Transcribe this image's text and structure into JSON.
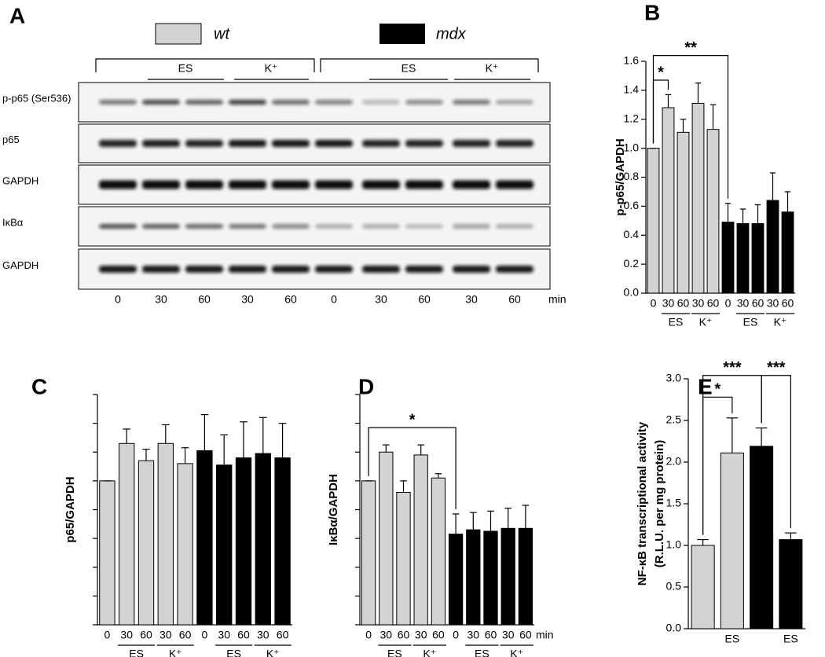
{
  "blot": {
    "panel": "A",
    "rows": [
      "p-p65 (Ser536)",
      "p65",
      "GAPDH",
      "IκBα",
      "GAPDH"
    ],
    "groups": [
      "ES",
      "K⁺",
      "ES",
      "K⁺"
    ],
    "lanes": [
      "0",
      "30",
      "60",
      "30",
      "60",
      "0",
      "30",
      "60",
      "30",
      "60"
    ],
    "unit": "min"
  },
  "chart_data": [
    {
      "type": "bar",
      "panel": "B",
      "ylabel": "p-p65/GAPDH",
      "categories": [
        "0",
        "30",
        "60",
        "30",
        "60",
        "0",
        "30",
        "60",
        "30",
        "60"
      ],
      "series": [
        {
          "name": "wt",
          "color": "#d3d3d3",
          "values": [
            1.0,
            1.28,
            1.11,
            1.31,
            1.13,
            null,
            null,
            null,
            null,
            null
          ],
          "errors": [
            0,
            0.09,
            0.09,
            0.14,
            0.17,
            null,
            null,
            null,
            null,
            null
          ]
        },
        {
          "name": "mdx",
          "color": "#000000",
          "values": [
            null,
            null,
            null,
            null,
            null,
            0.49,
            0.48,
            0.48,
            0.64,
            0.56
          ],
          "errors": [
            null,
            null,
            null,
            null,
            null,
            0.13,
            0.1,
            0.13,
            0.19,
            0.14
          ]
        }
      ],
      "ylim": [
        0,
        1.6
      ],
      "yticks": [
        {
          "value": 0,
          "label": "0.0"
        },
        0.2,
        0.4,
        0.6,
        0.8,
        {
          "value": 1,
          "label": "1.0"
        },
        1.2,
        1.4,
        1.6
      ],
      "groups": [
        "ES",
        "K⁺",
        "ES",
        "K⁺"
      ],
      "annotations": [
        {
          "text": "*"
        },
        {
          "text": "**"
        }
      ]
    },
    {
      "type": "bar",
      "panel": "C",
      "ylabel": "p65/GAPDH",
      "categories": [
        "0",
        "30",
        "60",
        "30",
        "60",
        "0",
        "30",
        "60",
        "30",
        "60"
      ],
      "series": [
        {
          "color": "#d3d3d3",
          "values": [
            1.0,
            1.26,
            1.14,
            1.26,
            1.12,
            null,
            null,
            null,
            null,
            null
          ],
          "errors": [
            0,
            0.1,
            0.08,
            0.13,
            0.11,
            null,
            null,
            null,
            null,
            null
          ]
        },
        {
          "color": "#000000",
          "values": [
            null,
            null,
            null,
            null,
            null,
            1.21,
            1.11,
            1.16,
            1.19,
            1.16
          ],
          "errors": [
            null,
            null,
            null,
            null,
            null,
            0.25,
            0.21,
            0.25,
            0.25,
            0.24
          ]
        }
      ],
      "ylim": [
        0,
        1.6
      ],
      "yticks": [
        0,
        0.2,
        0.4,
        0.6,
        0.8,
        1,
        1.2,
        1.4,
        1.6
      ],
      "ytick_labels": false,
      "groups": [
        "ES",
        "K⁺",
        "ES",
        "K⁺"
      ]
    },
    {
      "type": "bar",
      "panel": "D",
      "ylabel": "IκBα/GAPDH",
      "categories": [
        "0",
        "30",
        "60",
        "30",
        "60",
        "0",
        "30",
        "60",
        "30",
        "60"
      ],
      "x_unit": "min",
      "series": [
        {
          "color": "#d3d3d3",
          "values": [
            1.0,
            1.2,
            0.92,
            1.18,
            1.02,
            null,
            null,
            null,
            null,
            null
          ],
          "errors": [
            0,
            0.05,
            0.08,
            0.07,
            0.03,
            null,
            null,
            null,
            null,
            null
          ]
        },
        {
          "color": "#000000",
          "values": [
            null,
            null,
            null,
            null,
            null,
            0.63,
            0.66,
            0.65,
            0.67,
            0.67
          ],
          "errors": [
            null,
            null,
            null,
            null,
            null,
            0.14,
            0.12,
            0.14,
            0.14,
            0.16
          ]
        }
      ],
      "ylim": [
        0,
        1.6
      ],
      "yticks": [
        0,
        0.2,
        0.4,
        0.6,
        0.8,
        1,
        1.2,
        1.4,
        1.6
      ],
      "ytick_labels": false,
      "groups": [
        "ES",
        "K⁺",
        "ES",
        "K⁺"
      ],
      "annotations": [
        {
          "text": "*"
        }
      ]
    },
    {
      "type": "bar",
      "panel": "E",
      "ylabel": [
        "NF-κB transcriptional activity",
        "(R.L.U. per mg protein)"
      ],
      "categories": [
        null,
        "ES",
        null,
        "ES"
      ],
      "series": [
        {
          "color": "#d3d3d3",
          "values": [
            1.0,
            2.11,
            null,
            null
          ],
          "errors": [
            0.07,
            0.42,
            null,
            null
          ]
        },
        {
          "color": "#000000",
          "values": [
            null,
            null,
            2.19,
            1.07
          ],
          "errors": [
            null,
            null,
            0.22,
            0.08
          ]
        }
      ],
      "ylim": [
        0,
        3
      ],
      "yticks": [
        {
          "value": 0,
          "label": "0.0"
        },
        0.5,
        {
          "value": 1,
          "label": "1.0"
        },
        1.5,
        {
          "value": 2,
          "label": "2.0"
        },
        2.5,
        {
          "value": 3,
          "label": "3.0"
        }
      ],
      "annotations": [
        {
          "text": "*"
        },
        {
          "text": "***"
        },
        {
          "text": "***"
        }
      ]
    }
  ]
}
